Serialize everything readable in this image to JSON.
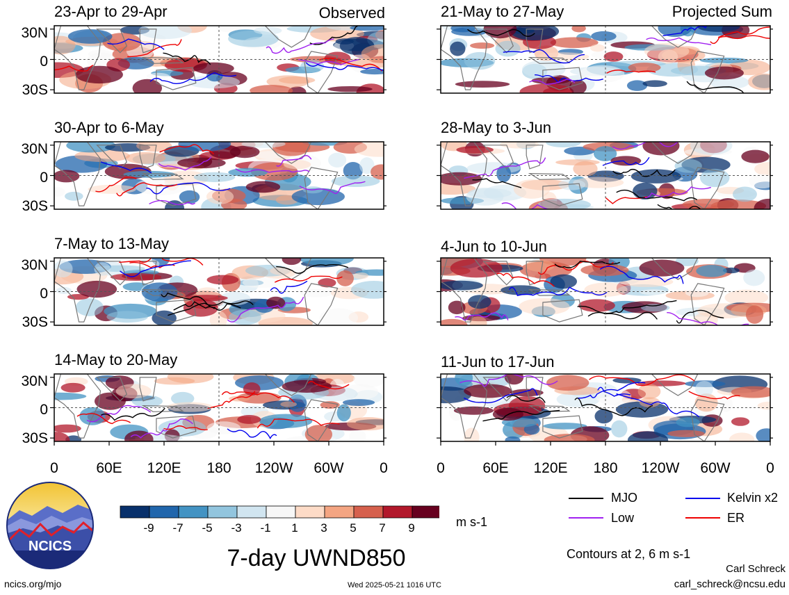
{
  "header": {
    "observed_label": "Observed",
    "projected_label": "Projected Sum"
  },
  "panels_left": [
    {
      "title": "23-Apr to 29-Apr"
    },
    {
      "title": "30-Apr to 6-May"
    },
    {
      "title": "7-May to 13-May"
    },
    {
      "title": "14-May to 20-May"
    }
  ],
  "panels_right": [
    {
      "title": "21-May to 27-May"
    },
    {
      "title": "28-May to 3-Jun"
    },
    {
      "title": "4-Jun to 10-Jun"
    },
    {
      "title": "11-Jun to 17-Jun"
    }
  ],
  "y_ticks": [
    "30N",
    "0",
    "30S"
  ],
  "x_ticks": [
    "0",
    "60E",
    "120E",
    "180",
    "120W",
    "60W",
    "0"
  ],
  "colorbar": {
    "labels": [
      "-9",
      "-7",
      "-5",
      "-3",
      "-1",
      "1",
      "3",
      "5",
      "7",
      "9"
    ],
    "colors": [
      "#08306b",
      "#2166ac",
      "#4393c3",
      "#92c5de",
      "#d1e5f0",
      "#f7f7f7",
      "#fddbc7",
      "#f4a582",
      "#d6604d",
      "#b2182b",
      "#67001f"
    ],
    "units": "m s-1"
  },
  "title": "7-day UWND850",
  "legend": {
    "items": [
      {
        "label": "MJO",
        "color": "#000000"
      },
      {
        "label": "Kelvin x2",
        "color": "#0000ee"
      },
      {
        "label": "Low",
        "color": "#a020f0"
      },
      {
        "label": "ER",
        "color": "#ee0000"
      }
    ],
    "contours_note": "Contours at 2, 6 m s-1"
  },
  "logo": {
    "text": "NCICS"
  },
  "footer": {
    "url": "ncics.org/mjo",
    "timestamp": "Wed 2025-05-21 1016 UTC",
    "author": "Carl Schreck",
    "email": "carl_schreck@ncsu.edu"
  }
}
